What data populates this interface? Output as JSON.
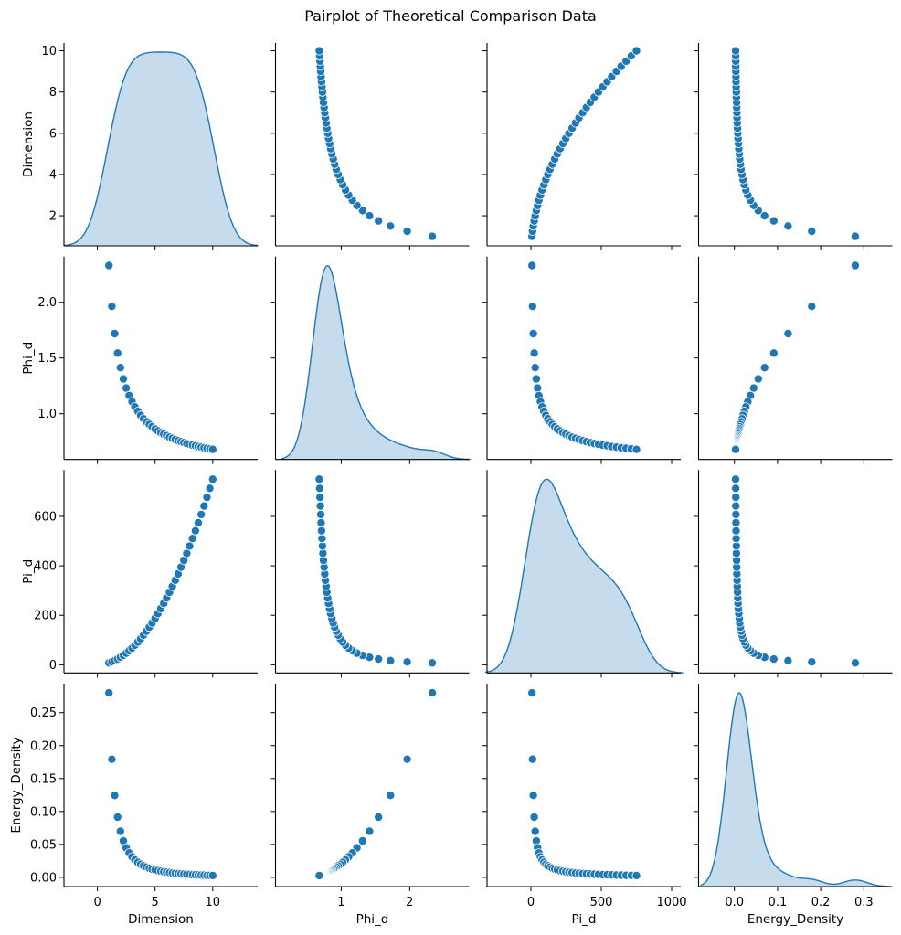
{
  "chart_data": {
    "type": "pairplot",
    "title": "Pairplot of Theoretical Comparison Data",
    "variables": [
      "Dimension",
      "Phi_d",
      "Pi_d",
      "Energy_Density"
    ],
    "axis_ranges": {
      "Dimension": [
        -2.9,
        13.9
      ],
      "Phi_d": [
        0.04,
        2.87
      ],
      "Pi_d": [
        -312,
        1065
      ],
      "Energy_Density": [
        -0.083,
        0.366
      ]
    },
    "y_ranges": {
      "Dimension": [
        0.54,
        10.38
      ],
      "Phi_d": [
        0.59,
        2.41
      ],
      "Pi_d": [
        -33,
        787
      ],
      "Energy_Density": [
        -0.014,
        0.294
      ]
    },
    "x_ticks": {
      "Dimension": {
        "values": [
          0,
          5,
          10
        ],
        "labels": [
          "0",
          "5",
          "10"
        ]
      },
      "Phi_d": {
        "values": [
          1,
          2
        ],
        "labels": [
          "1",
          "2"
        ]
      },
      "Pi_d": {
        "values": [
          0,
          500,
          1000
        ],
        "labels": [
          "0",
          "500",
          "1000"
        ]
      },
      "Energy_Density": {
        "values": [
          0,
          0.1,
          0.2,
          0.3
        ],
        "labels": [
          "0.0",
          "0.1",
          "0.2",
          "0.3"
        ]
      }
    },
    "y_ticks": {
      "Dimension": {
        "values": [
          2,
          4,
          6,
          8,
          10
        ],
        "labels": [
          "2",
          "4",
          "6",
          "8",
          "10"
        ]
      },
      "Phi_d": {
        "values": [
          1.0,
          1.5,
          2.0
        ],
        "labels": [
          "1.0",
          "1.5",
          "2.0"
        ]
      },
      "Pi_d": {
        "values": [
          0,
          200,
          400,
          600
        ],
        "labels": [
          "0",
          "200",
          "400",
          "600"
        ]
      },
      "Energy_Density": {
        "values": [
          0,
          0.05,
          0.1,
          0.15,
          0.2,
          0.25
        ],
        "labels": [
          "0.00",
          "0.05",
          "0.10",
          "0.15",
          "0.20",
          "0.25"
        ]
      }
    },
    "diagonal": "kde",
    "off_diagonal": "scatter",
    "grid": false,
    "color": "#1f77b4",
    "kde_fill": "#c6dbec",
    "data": {
      "Dimension": [
        1,
        1.25,
        1.5,
        1.75,
        2,
        2.25,
        2.5,
        2.75,
        3,
        3.25,
        3.5,
        3.75,
        4,
        4.25,
        4.5,
        4.75,
        5,
        5.25,
        5.5,
        5.75,
        6,
        6.25,
        6.5,
        6.75,
        7,
        7.25,
        7.5,
        7.75,
        8,
        8.25,
        8.5,
        8.75,
        9,
        9.25,
        9.5,
        9.75,
        10
      ],
      "Phi_d": [
        2.33,
        1.963,
        1.719,
        1.544,
        1.414,
        1.312,
        1.23,
        1.163,
        1.108,
        1.061,
        1.021,
        0.986,
        0.955,
        0.928,
        0.904,
        0.883,
        0.864,
        0.846,
        0.83,
        0.816,
        0.803,
        0.79,
        0.779,
        0.769,
        0.759,
        0.75,
        0.741,
        0.733,
        0.726,
        0.719,
        0.713,
        0.706,
        0.701,
        0.695,
        0.69,
        0.685,
        0.68
      ],
      "Pi_d": [
        7.5,
        11.72,
        16.88,
        22.97,
        30,
        37.97,
        46.88,
        56.72,
        67.5,
        79.22,
        91.88,
        105.47,
        120,
        135.47,
        151.88,
        169.22,
        187.5,
        206.72,
        226.88,
        247.97,
        270,
        292.97,
        316.88,
        341.72,
        367.5,
        394.22,
        421.88,
        450.47,
        480,
        510.47,
        541.88,
        574.22,
        607.5,
        641.72,
        676.88,
        712.97,
        750
      ],
      "Energy_Density": [
        0.28,
        0.1792,
        0.1244,
        0.0914,
        0.07,
        0.0553,
        0.0448,
        0.037,
        0.0311,
        0.0265,
        0.0229,
        0.0199,
        0.0175,
        0.0155,
        0.0138,
        0.0124,
        0.0112,
        0.0102,
        0.0093,
        0.0085,
        0.0078,
        0.0072,
        0.0066,
        0.0061,
        0.0057,
        0.0053,
        0.005,
        0.0047,
        0.0044,
        0.0041,
        0.0039,
        0.0037,
        0.0035,
        0.0033,
        0.0031,
        0.0029,
        0.0028
      ]
    }
  }
}
